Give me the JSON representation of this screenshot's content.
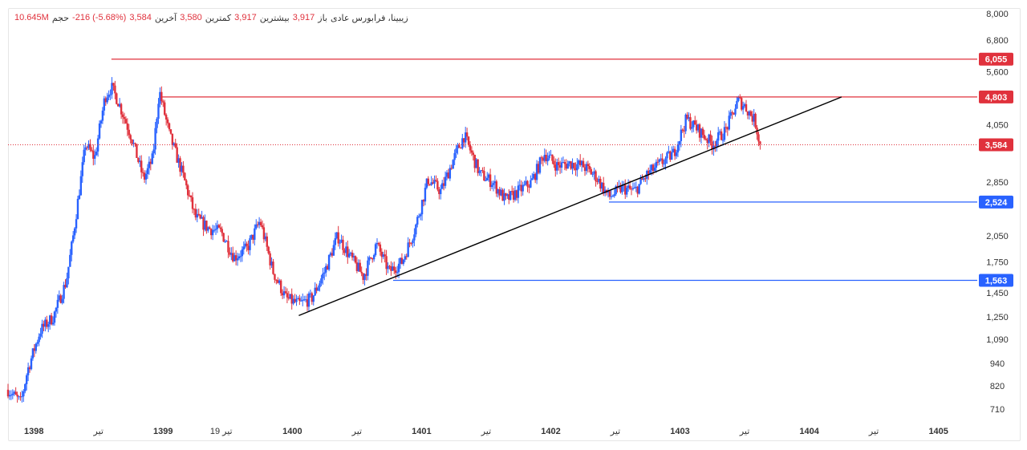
{
  "header": {
    "symbol": "زیبینا، فرابورس عادی",
    "open_label": "باز",
    "open_value": "3,917",
    "high_label": "بیشترین",
    "high_value": "3,917",
    "low_label": "کمترین",
    "low_value": "3,580",
    "close_label": "آخرین",
    "close_value": "3,584",
    "change_value": "-216 (-5.68%)",
    "volume_label": "حجم",
    "volume_value": "10.645M"
  },
  "colors": {
    "up": "#2962ff",
    "down": "#e0313c",
    "resistance": "#e0313c",
    "support": "#2962ff",
    "trendline": "#000000",
    "grid": "#e9e9e9"
  },
  "chart_data": {
    "type": "candlestick",
    "scale": "log",
    "title": "زیبینا، فرابورس عادی",
    "y_ticks": [
      8000,
      6800,
      5600,
      4050,
      2850,
      2050,
      1750,
      1450,
      1250,
      1090,
      940,
      820,
      710
    ],
    "y_tick_labels": [
      "8,000",
      "6,800",
      "5,600",
      "4,050",
      "2,850",
      "2,050",
      "1,750",
      "1,450",
      "1,250",
      "1,090",
      "940",
      "820",
      "710"
    ],
    "ylim": [
      660,
      8200
    ],
    "x_range": [
      1397.8,
      1405.3
    ],
    "x_ticks": [
      {
        "x": 1398.0,
        "label": "1398",
        "year": true
      },
      {
        "x": 1398.5,
        "label": "تیر",
        "year": false
      },
      {
        "x": 1399.0,
        "label": "1399",
        "year": true
      },
      {
        "x": 1399.45,
        "label": "19 تیر",
        "year": false
      },
      {
        "x": 1400.0,
        "label": "1400",
        "year": true
      },
      {
        "x": 1400.5,
        "label": "تیر",
        "year": false
      },
      {
        "x": 1401.0,
        "label": "1401",
        "year": true
      },
      {
        "x": 1401.5,
        "label": "تیر",
        "year": false
      },
      {
        "x": 1402.0,
        "label": "1402",
        "year": true
      },
      {
        "x": 1402.5,
        "label": "تیر",
        "year": false
      },
      {
        "x": 1403.0,
        "label": "1403",
        "year": true
      },
      {
        "x": 1403.5,
        "label": "تیر",
        "year": false
      },
      {
        "x": 1404.0,
        "label": "1404",
        "year": true
      },
      {
        "x": 1404.5,
        "label": "تیر",
        "year": false
      },
      {
        "x": 1405.0,
        "label": "1405",
        "year": true
      }
    ],
    "path": [
      [
        1397.8,
        800
      ],
      [
        1397.9,
        740
      ],
      [
        1397.95,
        900
      ],
      [
        1398.05,
        1150
      ],
      [
        1398.15,
        1250
      ],
      [
        1398.25,
        1550
      ],
      [
        1398.3,
        2000
      ],
      [
        1398.4,
        3600
      ],
      [
        1398.47,
        3300
      ],
      [
        1398.55,
        4800
      ],
      [
        1398.6,
        5100
      ],
      [
        1398.65,
        4700
      ],
      [
        1398.75,
        3800
      ],
      [
        1398.85,
        2900
      ],
      [
        1398.92,
        3300
      ],
      [
        1398.97,
        5000
      ],
      [
        1399.05,
        3800
      ],
      [
        1399.15,
        3000
      ],
      [
        1399.25,
        2300
      ],
      [
        1399.35,
        2150
      ],
      [
        1399.45,
        2100
      ],
      [
        1399.55,
        1800
      ],
      [
        1399.65,
        1900
      ],
      [
        1399.75,
        2250
      ],
      [
        1399.85,
        1650
      ],
      [
        1399.95,
        1400
      ],
      [
        1400.05,
        1350
      ],
      [
        1400.15,
        1400
      ],
      [
        1400.25,
        1650
      ],
      [
        1400.35,
        2050
      ],
      [
        1400.45,
        1800
      ],
      [
        1400.55,
        1600
      ],
      [
        1400.65,
        1950
      ],
      [
        1400.75,
        1650
      ],
      [
        1400.85,
        1750
      ],
      [
        1400.95,
        2150
      ],
      [
        1401.05,
        2900
      ],
      [
        1401.15,
        2700
      ],
      [
        1401.25,
        3300
      ],
      [
        1401.33,
        3800
      ],
      [
        1401.45,
        3000
      ],
      [
        1401.55,
        2850
      ],
      [
        1401.65,
        2550
      ],
      [
        1401.75,
        2700
      ],
      [
        1401.85,
        2850
      ],
      [
        1401.95,
        3400
      ],
      [
        1402.05,
        3150
      ],
      [
        1402.15,
        3200
      ],
      [
        1402.25,
        3150
      ],
      [
        1402.35,
        2950
      ],
      [
        1402.45,
        2600
      ],
      [
        1402.55,
        2750
      ],
      [
        1402.65,
        2700
      ],
      [
        1402.75,
        3000
      ],
      [
        1402.85,
        3200
      ],
      [
        1402.95,
        3400
      ],
      [
        1403.05,
        4200
      ],
      [
        1403.15,
        3900
      ],
      [
        1403.25,
        3600
      ],
      [
        1403.35,
        3900
      ],
      [
        1403.45,
        4700
      ],
      [
        1403.5,
        4550
      ],
      [
        1403.58,
        4150
      ],
      [
        1403.62,
        3584
      ]
    ],
    "annotations": {
      "resistance_levels": [
        {
          "value": 6055,
          "label": "6,055",
          "x_start": 1398.6
        },
        {
          "value": 4803,
          "label": "4,803",
          "x_start": 1398.98
        }
      ],
      "support_levels": [
        {
          "value": 2524,
          "label": "2,524",
          "x_start": 1402.45
        },
        {
          "value": 1563,
          "label": "1,563",
          "x_start": 1400.78
        }
      ],
      "last_price": {
        "value": 3584,
        "label": "3,584"
      },
      "trendline": {
        "from": [
          1400.05,
          1260
        ],
        "to": [
          1404.25,
          4803
        ]
      }
    }
  }
}
